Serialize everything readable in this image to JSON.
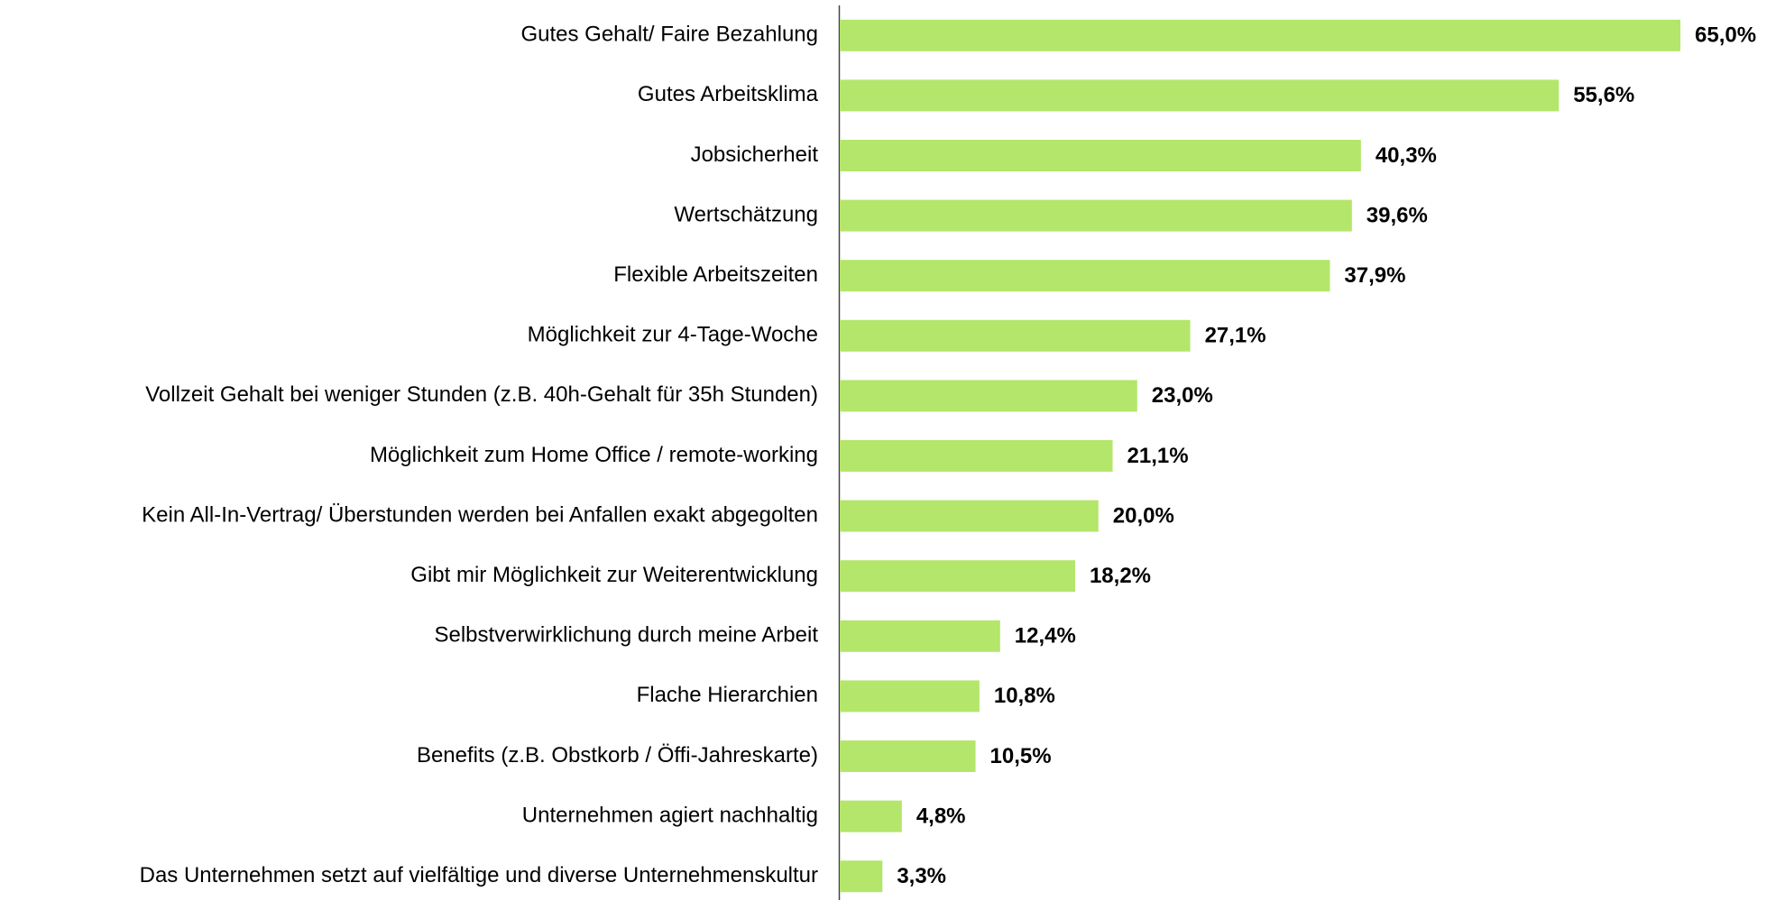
{
  "chart_data": {
    "type": "hbar",
    "categories": [
      "Gutes Gehalt/ Faire Bezahlung",
      "Gutes Arbeitsklima",
      "Jobsicherheit",
      "Wertschätzung",
      "Flexible Arbeitszeiten",
      "Möglichkeit zur 4-Tage-Woche",
      "Vollzeit Gehalt bei weniger Stunden (z.B. 40h-Gehalt für 35h Stunden)",
      "Möglichkeit zum Home Office / remote-working",
      "Kein All-In-Vertrag/ Überstunden werden bei Anfallen exakt abgegolten",
      "Gibt mir Möglichkeit zur Weiterentwicklung",
      "Selbstverwirklichung durch meine Arbeit",
      "Flache Hierarchien",
      "Benefits (z.B. Obstkorb / Öffi-Jahreskarte)",
      "Unternehmen agiert nachhaltig",
      "Das Unternehmen setzt auf vielfältige und diverse Unternehmenskultur"
    ],
    "values": [
      65.0,
      55.6,
      40.3,
      39.6,
      37.9,
      27.1,
      23.0,
      21.1,
      20.0,
      18.2,
      12.4,
      10.8,
      10.5,
      4.8,
      3.3
    ],
    "value_labels": [
      "65,0%",
      "55,6%",
      "40,3%",
      "39,6%",
      "37,9%",
      "27,1%",
      "23,0%",
      "21,1%",
      "20,0%",
      "18,2%",
      "12,4%",
      "10,8%",
      "10,5%",
      "4,8%",
      "3,3%"
    ],
    "color": "#b3e66a",
    "xlim": [
      0,
      65
    ]
  }
}
